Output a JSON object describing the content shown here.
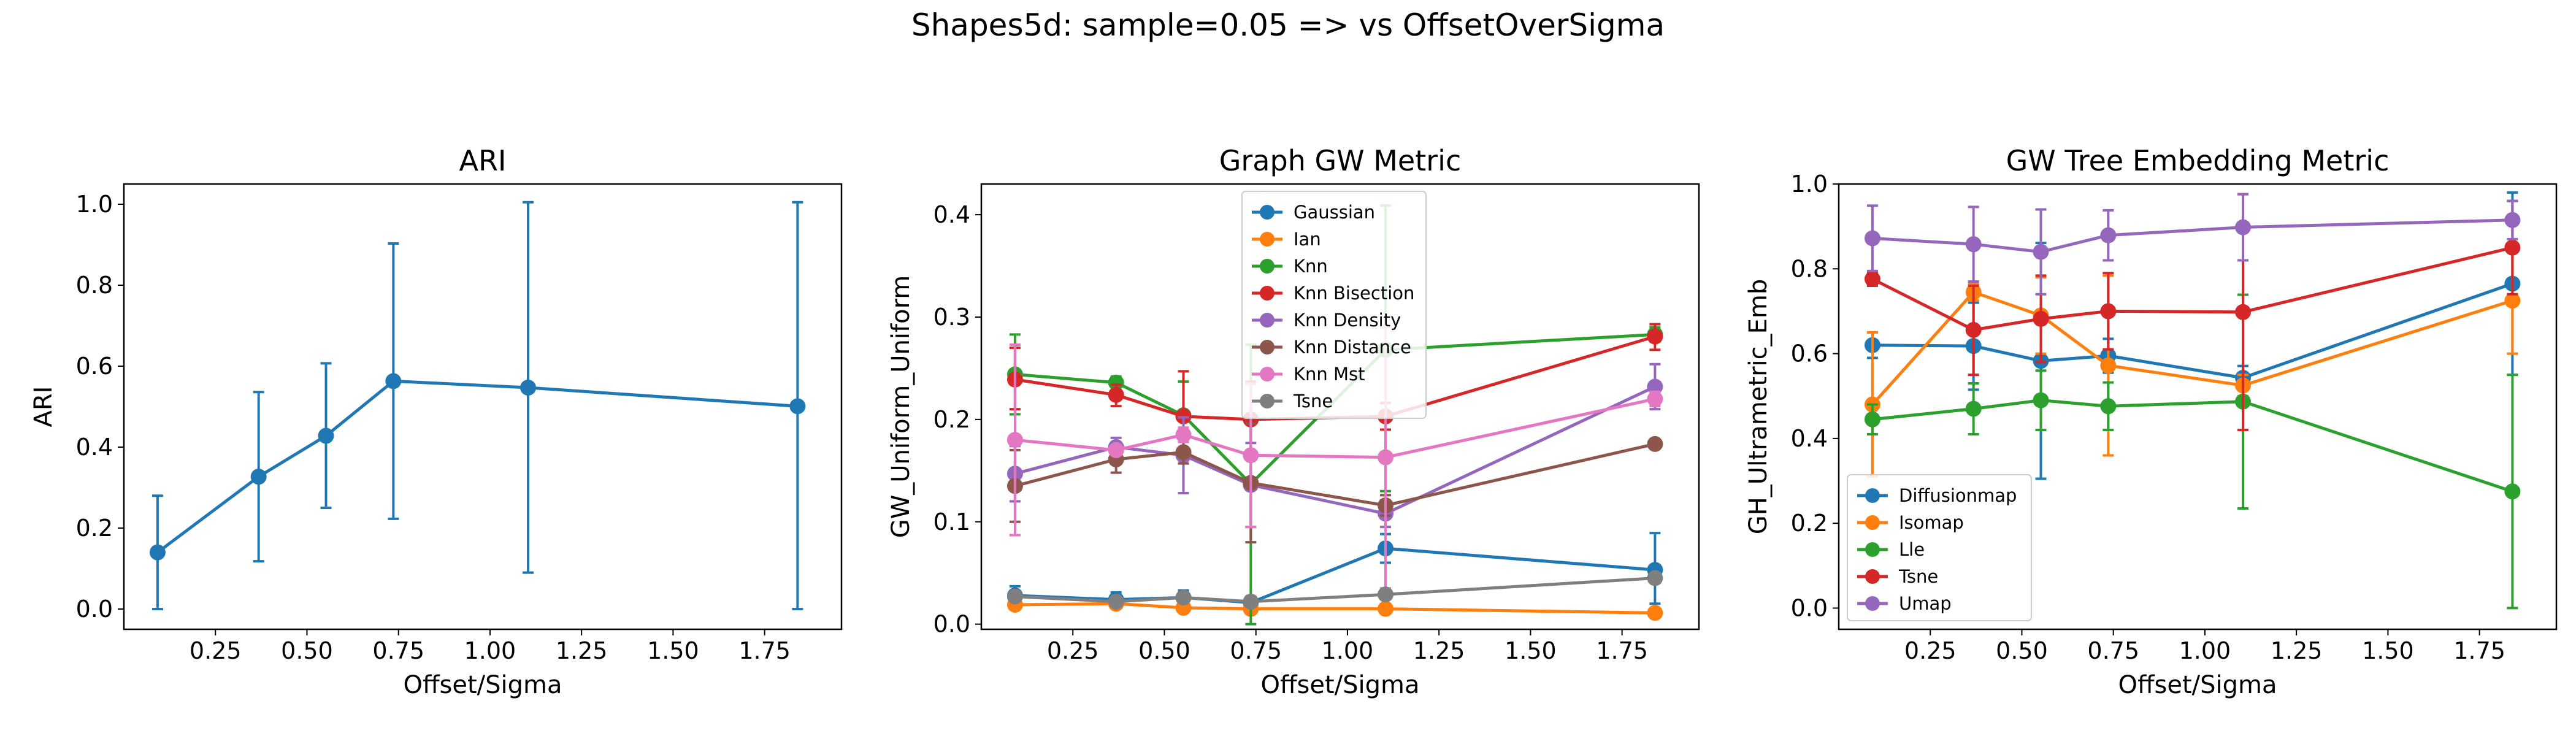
{
  "figure_title": "Shapes5d: sample=0.05 => vs OffsetOverSigma",
  "colors": {
    "c0": "#1f77b4",
    "c1": "#ff7f0e",
    "c2": "#2ca02c",
    "c3": "#d62728",
    "c4": "#9467bd",
    "c5": "#8c564b",
    "c6": "#e377c2",
    "c7": "#7f7f7f"
  },
  "chart_data": [
    {
      "type": "line",
      "title": "ARI",
      "xlabel": "Offset/Sigma",
      "ylabel": "ARI",
      "xlim": [
        0.0,
        1.96
      ],
      "ylim": [
        -0.05,
        1.05
      ],
      "xticks": [
        "0.25",
        "0.50",
        "0.75",
        "1.00",
        "1.25",
        "1.50",
        "1.75"
      ],
      "yticks": [
        "0.0",
        "0.2",
        "0.4",
        "0.6",
        "0.8",
        "1.0"
      ],
      "legend": null,
      "x": [
        0.092,
        0.368,
        0.552,
        0.736,
        1.104,
        1.84
      ],
      "series": [
        {
          "color": "#1f77b4",
          "values": [
            0.14,
            0.327,
            0.428,
            0.563,
            0.547,
            0.501
          ],
          "err_low": [
            0.0,
            0.118,
            0.25,
            0.223,
            0.09,
            0.0
          ],
          "err_high": [
            0.28,
            0.536,
            0.607,
            0.903,
            1.005,
            1.005
          ]
        }
      ]
    },
    {
      "type": "line",
      "title": "Graph GW Metric",
      "xlabel": "Offset/Sigma",
      "ylabel": "GW_Uniform_Uniform",
      "xlim": [
        0.0,
        1.96
      ],
      "ylim": [
        -0.005,
        0.43
      ],
      "xticks": [
        "0.25",
        "0.50",
        "0.75",
        "1.00",
        "1.25",
        "1.50",
        "1.75"
      ],
      "yticks": [
        "0.0",
        "0.1",
        "0.2",
        "0.3",
        "0.4"
      ],
      "legend": "upper center",
      "x": [
        0.092,
        0.368,
        0.552,
        0.736,
        1.104,
        1.84
      ],
      "series": [
        {
          "name": "Gaussian",
          "color": "#1f77b4",
          "values": [
            0.028,
            0.024,
            0.026,
            0.021,
            0.074,
            0.053
          ],
          "err_low": [
            0.02,
            0.017,
            0.02,
            0.015,
            0.06,
            0.02
          ],
          "err_high": [
            0.037,
            0.031,
            0.033,
            0.027,
            0.088,
            0.089
          ]
        },
        {
          "name": "Ian",
          "color": "#ff7f0e",
          "values": [
            0.019,
            0.02,
            0.016,
            0.015,
            0.015,
            0.011
          ],
          "err_low": [
            0.016,
            0.017,
            0.013,
            0.013,
            0.012,
            0.009
          ],
          "err_high": [
            0.022,
            0.024,
            0.019,
            0.018,
            0.018,
            0.014
          ]
        },
        {
          "name": "Knn",
          "color": "#2ca02c",
          "values": [
            0.244,
            0.236,
            0.204,
            0.137,
            0.268,
            0.283
          ],
          "err_low": [
            0.205,
            0.228,
            0.17,
            0.0,
            0.13,
            0.276
          ],
          "err_high": [
            0.283,
            0.242,
            0.237,
            0.273,
            0.409,
            0.29
          ]
        },
        {
          "name": "Knn Bisection",
          "color": "#d62728",
          "values": [
            0.239,
            0.224,
            0.203,
            0.2,
            0.203,
            0.281
          ],
          "err_low": [
            0.21,
            0.213,
            0.16,
            0.163,
            0.19,
            0.268
          ],
          "err_high": [
            0.27,
            0.234,
            0.247,
            0.237,
            0.216,
            0.293
          ]
        },
        {
          "name": "Knn Density",
          "color": "#9467bd",
          "values": [
            0.147,
            0.173,
            0.165,
            0.136,
            0.108,
            0.232
          ],
          "err_low": [
            0.12,
            0.163,
            0.128,
            0.095,
            0.095,
            0.21
          ],
          "err_high": [
            0.174,
            0.182,
            0.202,
            0.177,
            0.121,
            0.254
          ]
        },
        {
          "name": "Knn Distance",
          "color": "#8c564b",
          "values": [
            0.135,
            0.161,
            0.168,
            0.138,
            0.116,
            0.176
          ],
          "err_low": [
            0.1,
            0.148,
            0.157,
            0.08,
            0.106,
            0.172
          ],
          "err_high": [
            0.17,
            0.174,
            0.179,
            0.196,
            0.126,
            0.18
          ]
        },
        {
          "name": "Knn Mst",
          "color": "#e377c2",
          "values": [
            0.18,
            0.17,
            0.185,
            0.165,
            0.163,
            0.22
          ],
          "err_low": [
            0.087,
            0.165,
            0.178,
            0.095,
            0.035,
            0.213
          ],
          "err_high": [
            0.273,
            0.175,
            0.192,
            0.235,
            0.29,
            0.227
          ]
        },
        {
          "name": "Tsne",
          "color": "#7f7f7f",
          "values": [
            0.027,
            0.022,
            0.026,
            0.022,
            0.029,
            0.045
          ],
          "err_low": [
            0.024,
            0.019,
            0.023,
            0.019,
            0.026,
            0.042
          ],
          "err_high": [
            0.03,
            0.025,
            0.029,
            0.025,
            0.032,
            0.048
          ]
        }
      ]
    },
    {
      "type": "line",
      "title": "GW Tree Embedding Metric",
      "xlabel": "Offset/Sigma",
      "ylabel": "GH_Ultrametric_Emb",
      "xlim": [
        0.0,
        1.96
      ],
      "ylim": [
        -0.05,
        1.0
      ],
      "xticks": [
        "0.25",
        "0.50",
        "0.75",
        "1.00",
        "1.25",
        "1.50",
        "1.75"
      ],
      "yticks": [
        "0.0",
        "0.2",
        "0.4",
        "0.6",
        "0.8",
        "1.0"
      ],
      "legend": "lower left",
      "x": [
        0.092,
        0.368,
        0.552,
        0.736,
        1.104,
        1.84
      ],
      "series": [
        {
          "name": "Diffusionmap",
          "color": "#1f77b4",
          "values": [
            0.62,
            0.618,
            0.583,
            0.595,
            0.543,
            0.765
          ],
          "err_low": [
            0.59,
            0.515,
            0.305,
            0.555,
            0.515,
            0.55
          ],
          "err_high": [
            0.65,
            0.72,
            0.861,
            0.635,
            0.571,
            0.98
          ]
        },
        {
          "name": "Isomap",
          "color": "#ff7f0e",
          "values": [
            0.48,
            0.745,
            0.69,
            0.572,
            0.525,
            0.725
          ],
          "err_low": [
            0.31,
            0.725,
            0.6,
            0.36,
            0.5,
            0.6
          ],
          "err_high": [
            0.65,
            0.765,
            0.78,
            0.784,
            0.55,
            0.85
          ]
        },
        {
          "name": "Lle",
          "color": "#2ca02c",
          "values": [
            0.445,
            0.47,
            0.49,
            0.476,
            0.487,
            0.275
          ],
          "err_low": [
            0.41,
            0.41,
            0.42,
            0.42,
            0.235,
            0.0
          ],
          "err_high": [
            0.48,
            0.53,
            0.56,
            0.532,
            0.739,
            0.55
          ]
        },
        {
          "name": "Tsne",
          "color": "#d62728",
          "values": [
            0.776,
            0.656,
            0.682,
            0.7,
            0.698,
            0.85
          ],
          "err_low": [
            0.76,
            0.55,
            0.58,
            0.61,
            0.42,
            0.74
          ],
          "err_high": [
            0.792,
            0.76,
            0.784,
            0.79,
            0.976,
            0.96
          ]
        },
        {
          "name": "Umap",
          "color": "#9467bd",
          "values": [
            0.872,
            0.858,
            0.84,
            0.879,
            0.898,
            0.915
          ],
          "err_low": [
            0.795,
            0.77,
            0.74,
            0.82,
            0.82,
            0.87
          ],
          "err_high": [
            0.949,
            0.946,
            0.94,
            0.938,
            0.976,
            0.96
          ]
        }
      ]
    }
  ]
}
